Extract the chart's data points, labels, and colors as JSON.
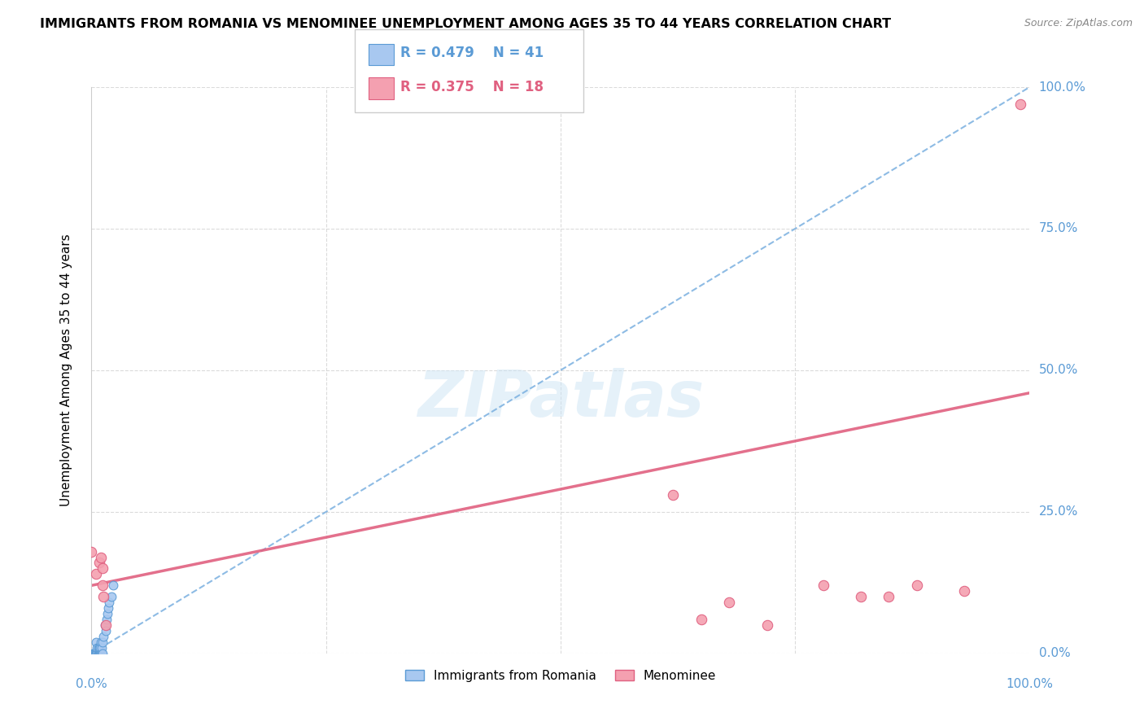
{
  "title": "IMMIGRANTS FROM ROMANIA VS MENOMINEE UNEMPLOYMENT AMONG AGES 35 TO 44 YEARS CORRELATION CHART",
  "source": "Source: ZipAtlas.com",
  "ylabel": "Unemployment Among Ages 35 to 44 years",
  "xlim": [
    0,
    1.0
  ],
  "ylim": [
    0,
    1.0
  ],
  "ytick_positions": [
    0,
    0.25,
    0.5,
    0.75,
    1.0
  ],
  "ytick_labels": [
    "0.0%",
    "25.0%",
    "50.0%",
    "75.0%",
    "100.0%"
  ],
  "grid_color": "#cccccc",
  "background_color": "#ffffff",
  "romania_color": "#a8c8f0",
  "romania_edge_color": "#5b9bd5",
  "menominee_color": "#f4a0b0",
  "menominee_edge_color": "#e06080",
  "romania_R": 0.479,
  "romania_N": 41,
  "menominee_R": 0.375,
  "menominee_N": 18,
  "romania_trend_color": "#7ab0e0",
  "menominee_trend_color": "#e06080",
  "watermark": "ZIPatlas",
  "romania_scatter_x": [
    0.001,
    0.002,
    0.002,
    0.003,
    0.003,
    0.003,
    0.004,
    0.004,
    0.004,
    0.005,
    0.005,
    0.005,
    0.006,
    0.006,
    0.006,
    0.007,
    0.007,
    0.007,
    0.007,
    0.008,
    0.008,
    0.008,
    0.009,
    0.009,
    0.009,
    0.01,
    0.01,
    0.01,
    0.011,
    0.011,
    0.012,
    0.012,
    0.013,
    0.014,
    0.015,
    0.016,
    0.017,
    0.018,
    0.019,
    0.021,
    0.023
  ],
  "romania_scatter_y": [
    0.0,
    0.0,
    0.0,
    0.0,
    0.0,
    0.0,
    0.0,
    0.0,
    0.0,
    0.0,
    0.0,
    0.02,
    0.0,
    0.0,
    0.01,
    0.0,
    0.0,
    0.0,
    0.01,
    0.0,
    0.0,
    0.01,
    0.0,
    0.0,
    0.01,
    0.0,
    0.0,
    0.02,
    0.0,
    0.01,
    0.0,
    0.02,
    0.03,
    0.05,
    0.04,
    0.06,
    0.07,
    0.08,
    0.09,
    0.1,
    0.12
  ],
  "menominee_scatter_x": [
    0.0,
    0.005,
    0.008,
    0.01,
    0.012,
    0.012,
    0.013,
    0.015,
    0.62,
    0.65,
    0.68,
    0.72,
    0.78,
    0.82,
    0.85,
    0.88,
    0.93,
    0.99
  ],
  "menominee_scatter_y": [
    0.18,
    0.14,
    0.16,
    0.17,
    0.12,
    0.15,
    0.1,
    0.05,
    0.28,
    0.06,
    0.09,
    0.05,
    0.12,
    0.1,
    0.1,
    0.12,
    0.11,
    0.97
  ],
  "romania_trend_x": [
    0.0,
    1.0
  ],
  "romania_trend_y": [
    0.0,
    1.0
  ],
  "menominee_trend_x": [
    0.0,
    1.0
  ],
  "menominee_trend_y": [
    0.12,
    0.46
  ]
}
